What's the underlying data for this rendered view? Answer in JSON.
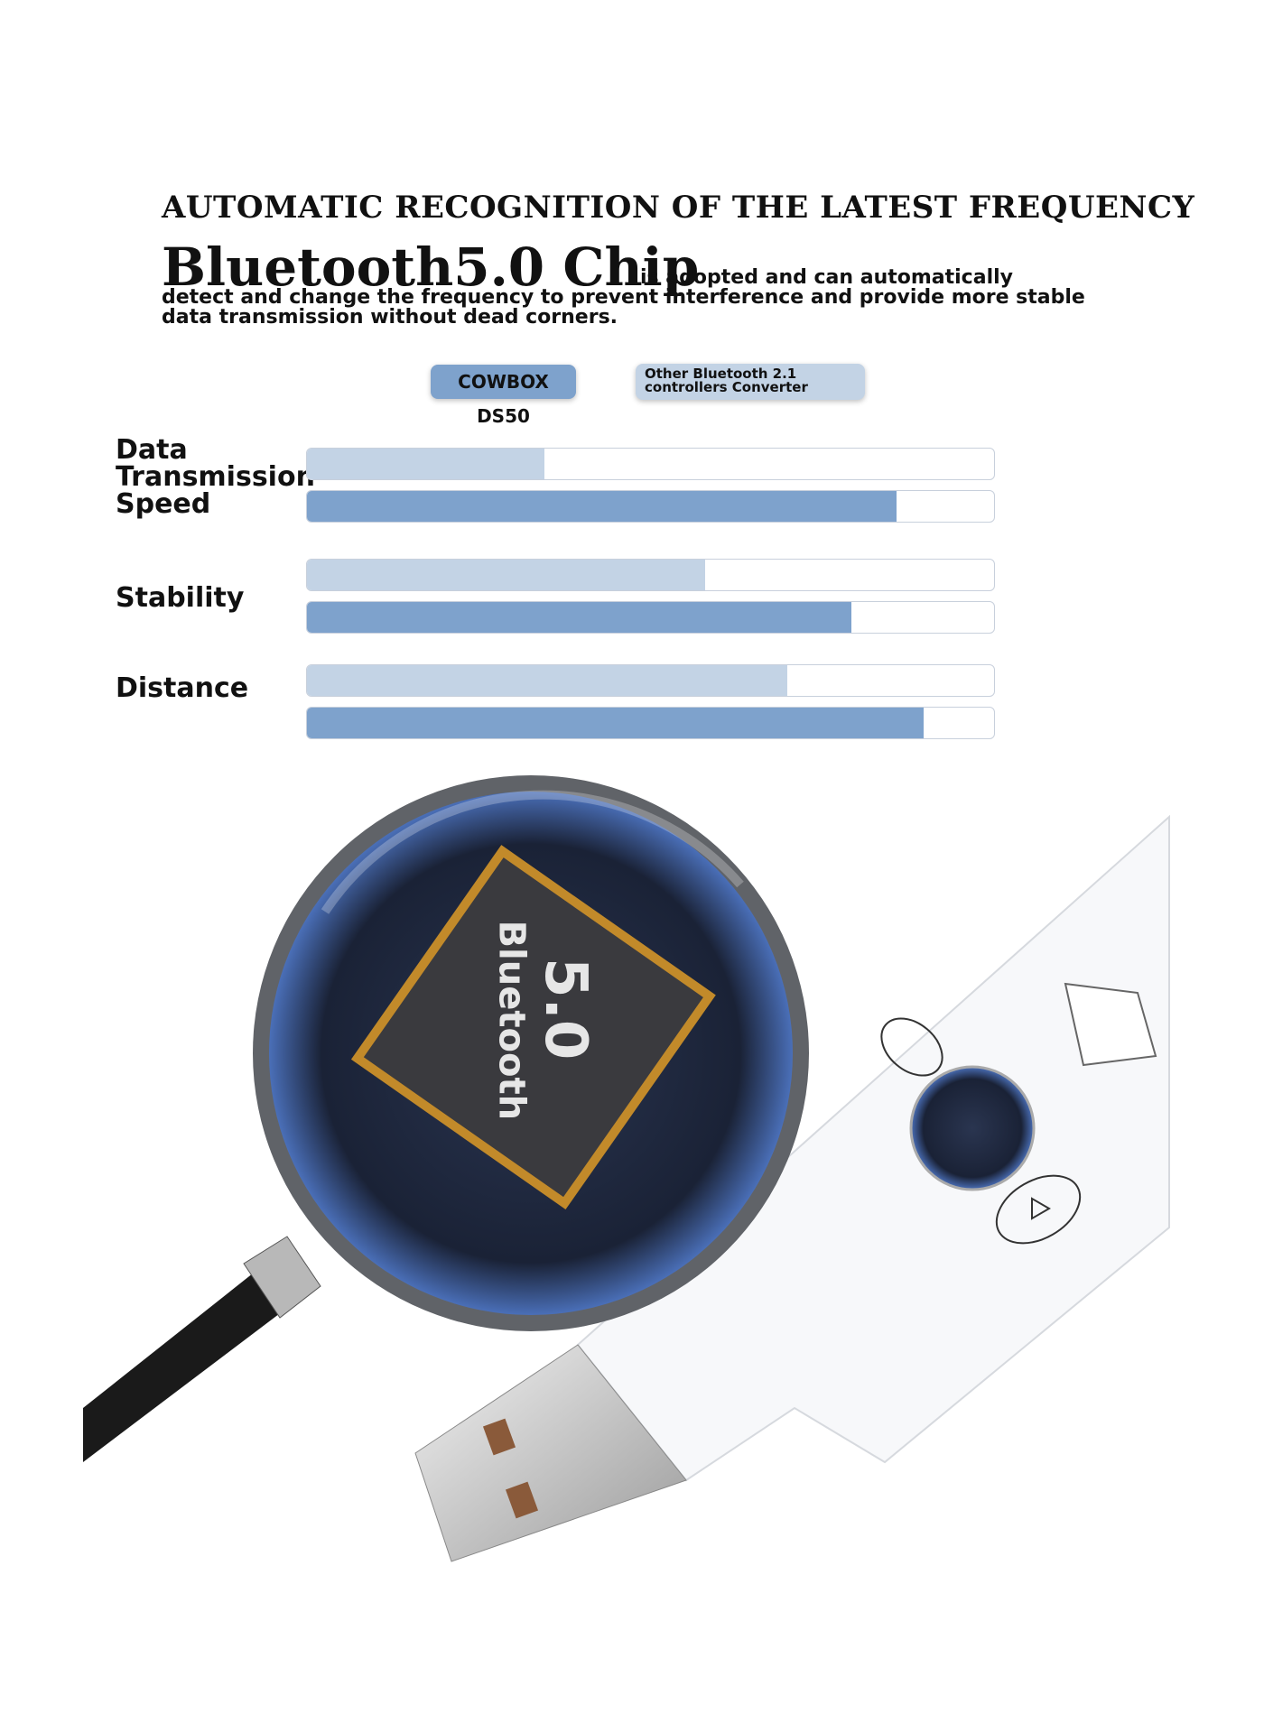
{
  "header": {
    "title": "AUTOMATIC RECOGNITION OF THE LATEST FREQUENCY",
    "headline": "Bluetooth5.0 Chip",
    "description": "is adopted and can automatically detect and change the frequency to prevent interference and provide more stable data transmission without dead corners."
  },
  "chart_data": {
    "type": "bar",
    "orientation": "horizontal",
    "categories": [
      "Data Transmission Speed",
      "Stability",
      "Distance"
    ],
    "series": [
      {
        "name": "COWBOX DS50",
        "color": "#7ea2cc",
        "values": [
          85.8,
          79.3,
          89.7
        ]
      },
      {
        "name": "Other Bluetooth 2.1 controllers Converter",
        "color": "#c3d3e5",
        "values": [
          34.5,
          57.9,
          69.9
        ]
      }
    ],
    "xlim": [
      0,
      100
    ]
  },
  "chip_label": {
    "version": "5.0",
    "brand": "Bluetooth"
  }
}
